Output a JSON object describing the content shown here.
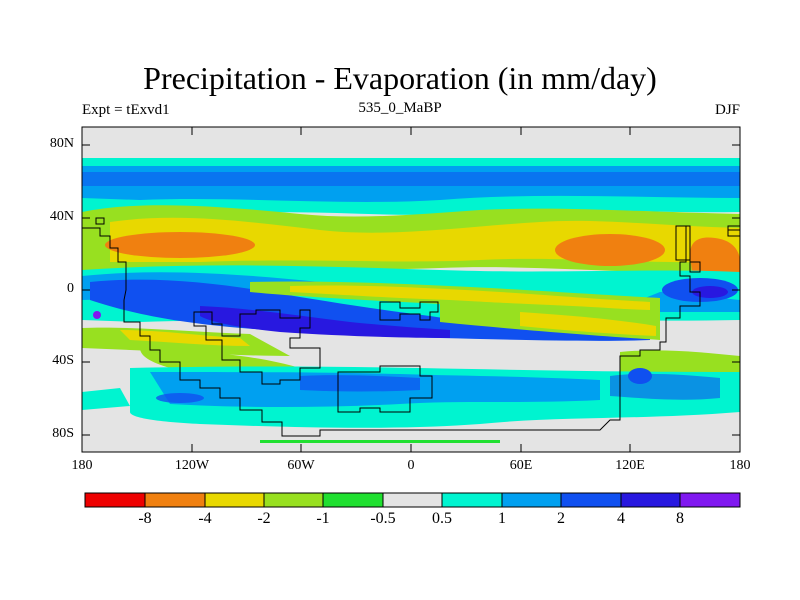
{
  "title": "Precipitation - Evaporation (in mm/day)",
  "subtitle_left": "Expt = tExvd1",
  "subtitle_center": "535_0_MaBP",
  "subtitle_right": "DJF",
  "lat_ticks": [
    "80N",
    "40N",
    "0",
    "40S",
    "80S"
  ],
  "lon_ticks": [
    "180",
    "120W",
    "60W",
    "0",
    "60E",
    "120E",
    "180"
  ],
  "colorbar": {
    "colors": [
      "#ee0000",
      "#f08010",
      "#e8d800",
      "#98e020",
      "#20e030",
      "#e4e4e4",
      "#00f4d0",
      "#00a0f0",
      "#1050f0",
      "#2818e0",
      "#8018f0"
    ],
    "labels": [
      "-8",
      "-4",
      "-2",
      "-1",
      "-0.5",
      "0.5",
      "1",
      "2",
      "4",
      "8"
    ]
  }
}
